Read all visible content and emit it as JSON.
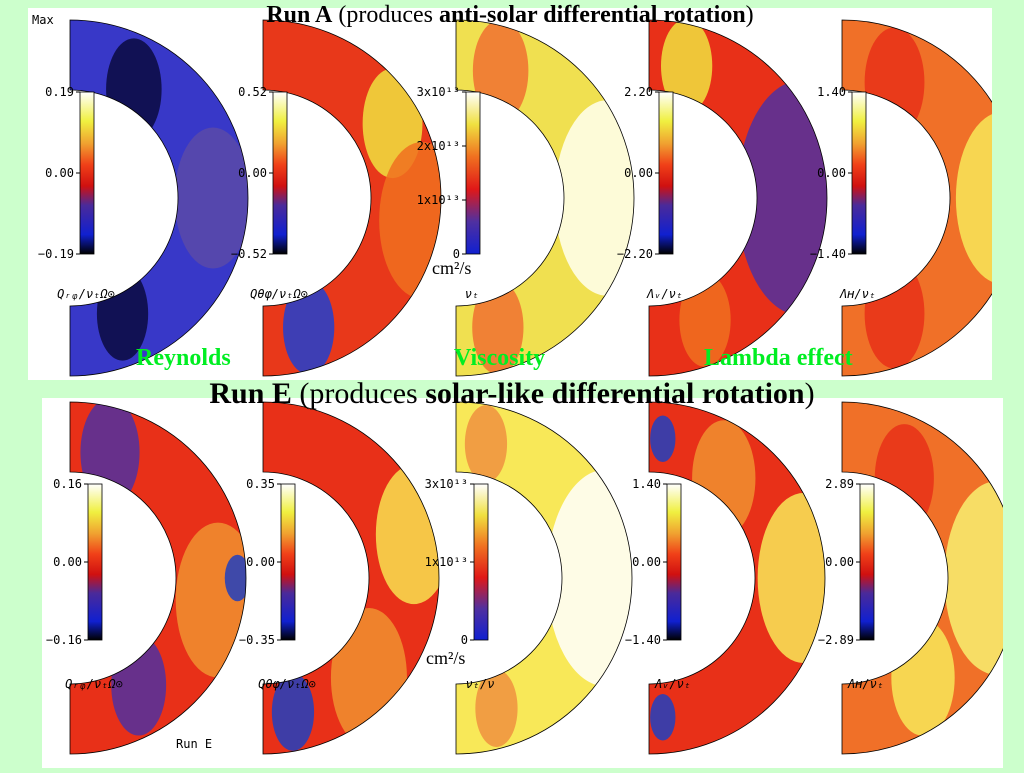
{
  "run_a": {
    "title_prefix": "Run A",
    "title_middle": "(produces ",
    "title_bold": "anti-solar differential rotation",
    "title_suffix": ")",
    "max_label": "Max",
    "reynolds_label": "Reynolds",
    "viscosity_label": "Viscosity",
    "lambda_label": "Lambda effect",
    "units": "cm²/s",
    "plots": [
      {
        "ticks": [
          "0.19",
          "0.00",
          "−0.19"
        ],
        "label": "Qᵣᵩ/νₜΩ⊙",
        "palette": "rwb"
      },
      {
        "ticks": [
          "0.52",
          "0.00",
          "−0.52"
        ],
        "label": "Qθφ/νₜΩ⊙",
        "palette": "rwb"
      },
      {
        "ticks": [
          "3x10¹³",
          "2x10¹³",
          "1x10¹³",
          "0"
        ],
        "label": "νₜ",
        "palette": "visc"
      },
      {
        "ticks": [
          "2.20",
          "0.00",
          "−2.20"
        ],
        "label": "Λᵥ/νₜ",
        "palette": "rwb"
      },
      {
        "ticks": [
          "1.40",
          "0.00",
          "−1.40"
        ],
        "label": "Λʜ/νₜ",
        "palette": "rwb"
      }
    ]
  },
  "run_e": {
    "title_prefix": "Run E",
    "title_middle": "(produces ",
    "title_bold": "solar-like differential rotation",
    "title_suffix": ")",
    "run_label": "Run E",
    "units": "cm²/s",
    "plots": [
      {
        "ticks": [
          "0.16",
          "0.00",
          "−0.16"
        ],
        "label": "Qᵣᵩ/νₜΩ⊙",
        "palette": "rwb"
      },
      {
        "ticks": [
          "0.35",
          "0.00",
          "−0.35"
        ],
        "label": "Qθφ/νₜΩ⊙",
        "palette": "rwb"
      },
      {
        "ticks": [
          "3x10¹³",
          "1x10¹³",
          "0"
        ],
        "label": "νₜ/ν",
        "palette": "visc"
      },
      {
        "ticks": [
          "1.40",
          "0.00",
          "−1.40"
        ],
        "label": "Λᵥ/νₜ",
        "palette": "rwb"
      },
      {
        "ticks": [
          "2.89",
          "0.00",
          "−2.89"
        ],
        "label": "Λʜ/νₜ",
        "palette": "rwb"
      }
    ]
  },
  "colors": {
    "background": "#ccffcc",
    "panel": "#ffffff",
    "section_label": "#00ee22"
  }
}
